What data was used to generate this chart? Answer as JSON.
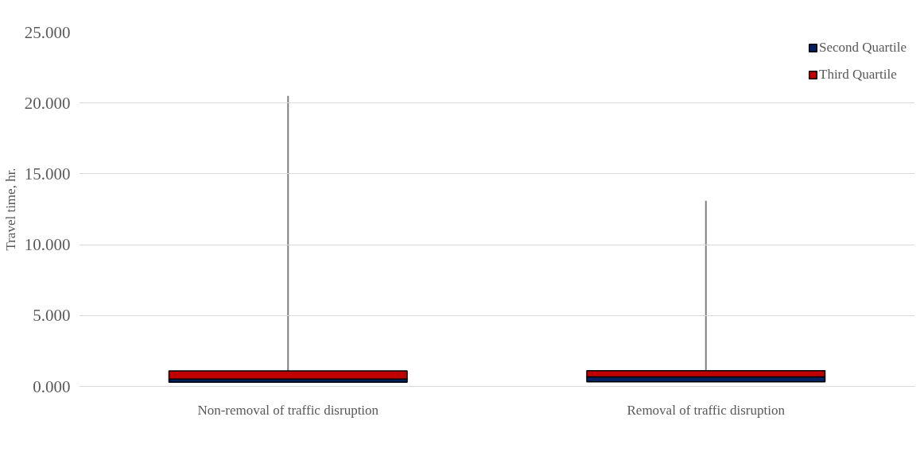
{
  "chart_data": {
    "type": "bar",
    "stacked": true,
    "ylabel": "Travel time, hr.",
    "categories": [
      "Non-removal of traffic disruption",
      "Removal of traffic disruption"
    ],
    "series": [
      {
        "color": "#ffffff",
        "values": [
          0.3,
          0.32
        ]
      },
      {
        "name": "Second Quartile",
        "color": "#002060",
        "values": [
          0.22,
          0.35
        ]
      },
      {
        "name": "Third Quartile",
        "color": "#c00000",
        "values": [
          0.57,
          0.44
        ],
        "errors": [
          [
            0.1,
            20.5
          ],
          [
            0.1,
            13.1
          ]
        ]
      }
    ],
    "ylim": [
      0,
      25
    ],
    "yticks": [
      {
        "value": 0,
        "label": "0.000"
      },
      {
        "value": 5,
        "label": "5.000"
      },
      {
        "value": 10,
        "label": "10.000"
      },
      {
        "value": 15,
        "label": "15.000"
      },
      {
        "value": 20,
        "label": "20.000"
      },
      {
        "value": 25,
        "label": "25.000"
      }
    ],
    "grid": "y",
    "legend": "top right"
  }
}
